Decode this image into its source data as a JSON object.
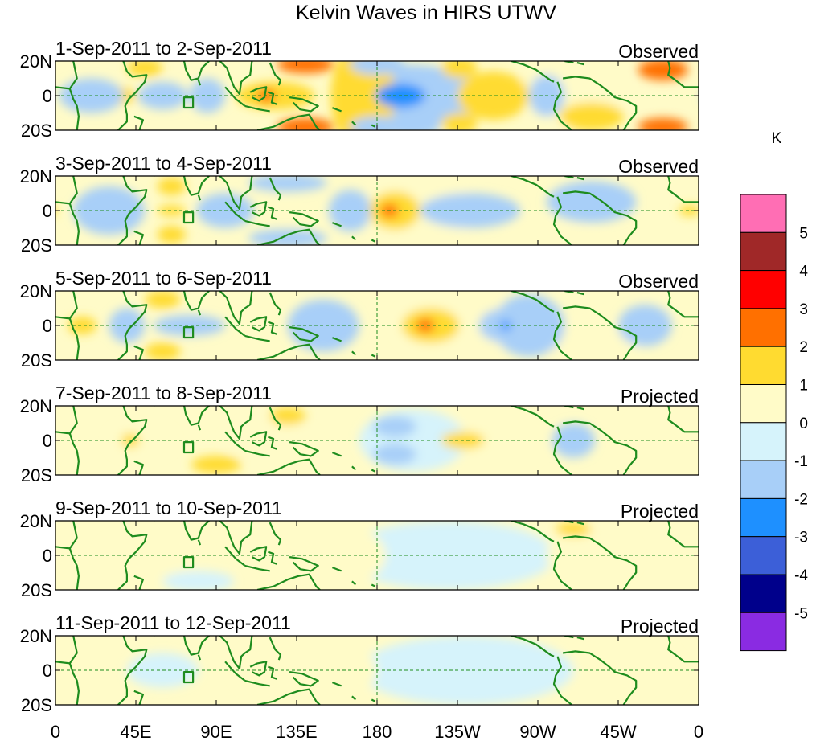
{
  "chart_data": {
    "type": "heatmap",
    "title": "Kelvin Waves in HIRS UTWV",
    "units": "K",
    "x_ticks": [
      "0",
      "45E",
      "90E",
      "135E",
      "180",
      "135W",
      "90W",
      "45W",
      "0"
    ],
    "y_ticks": [
      "20N",
      "0",
      "20S"
    ],
    "lon_range": [
      0,
      360
    ],
    "lat_range": [
      -20,
      20
    ],
    "colorbar": {
      "labels": [
        "5",
        "4",
        "3",
        "2",
        "1",
        "0",
        "-1",
        "-2",
        "-3",
        "-4",
        "-5"
      ],
      "levels": [
        -5,
        -4,
        -3,
        -2,
        -1,
        0,
        1,
        2,
        3,
        4,
        5
      ],
      "colors": [
        "#8a2be2",
        "#00008b",
        "#3c5fd8",
        "#1e90ff",
        "#a8cff8",
        "#d6f3fb",
        "#fffbc8",
        "#ffdb30",
        "#ff7000",
        "#ff0000",
        "#a02828",
        "#ff6eb4"
      ]
    },
    "panels": [
      {
        "period": "1-Sep-2011 to 2-Sep-2011",
        "status": "Observed",
        "anomalies": [
          {
            "lon": 193,
            "lat": 0,
            "value": -2.6,
            "rlon": 14,
            "rlat": 7
          },
          {
            "lon": 197,
            "lat": 0,
            "value": -1.2,
            "rlon": 42,
            "rlat": 18
          },
          {
            "lon": 172,
            "lat": 0,
            "value": 1.5,
            "rlon": 18,
            "rlat": 30
          },
          {
            "lon": 245,
            "lat": 0,
            "value": 1.4,
            "rlon": 20,
            "rlat": 14
          },
          {
            "lon": 290,
            "lat": 3,
            "value": 0.6,
            "rlon": 30,
            "rlat": 22
          },
          {
            "lon": 140,
            "lat": 18,
            "value": 2.2,
            "rlon": 16,
            "rlat": 5
          },
          {
            "lon": 140,
            "lat": -18,
            "value": 2.2,
            "rlon": 16,
            "rlat": 5
          },
          {
            "lon": 180,
            "lat": 18,
            "value": -1.5,
            "rlon": 15,
            "rlat": 6
          },
          {
            "lon": 180,
            "lat": -18,
            "value": -1.5,
            "rlon": 15,
            "rlat": 6
          },
          {
            "lon": 200,
            "lat": -18,
            "value": -1.5,
            "rlon": 15,
            "rlat": 6
          },
          {
            "lon": 123,
            "lat": 0,
            "value": 1.5,
            "rlon": 22,
            "rlat": 8
          },
          {
            "lon": 118,
            "lat": 0,
            "value": 2.6,
            "rlon": 5,
            "rlat": 4
          },
          {
            "lon": 226,
            "lat": 16,
            "value": 1.3,
            "rlon": 10,
            "rlat": 6
          },
          {
            "lon": 226,
            "lat": -16,
            "value": 1.3,
            "rlon": 10,
            "rlat": 6
          },
          {
            "lon": 340,
            "lat": 15,
            "value": 2.4,
            "rlon": 14,
            "rlat": 6
          },
          {
            "lon": 340,
            "lat": -18,
            "value": 2.4,
            "rlon": 14,
            "rlat": 5
          },
          {
            "lon": 300,
            "lat": -12,
            "value": 1.2,
            "rlon": 18,
            "rlat": 8
          },
          {
            "lon": 50,
            "lat": 16,
            "value": 1.2,
            "rlon": 10,
            "rlat": 5
          },
          {
            "lon": 35,
            "lat": 0,
            "value": 1.2,
            "rlon": 10,
            "rlat": 5
          },
          {
            "lon": 60,
            "lat": 0,
            "value": -1.1,
            "rlon": 14,
            "rlat": 8
          },
          {
            "lon": 85,
            "lat": 0,
            "value": -1.1,
            "rlon": 10,
            "rlat": 10
          },
          {
            "lon": 20,
            "lat": 0,
            "value": -1.2,
            "rlon": 18,
            "rlat": 10
          },
          {
            "lon": 275,
            "lat": 0,
            "value": -1.1,
            "rlon": 10,
            "rlat": 12
          }
        ]
      },
      {
        "period": "3-Sep-2011 to 4-Sep-2011",
        "status": "Observed",
        "anomalies": [
          {
            "lon": 187,
            "lat": 0,
            "value": 2.7,
            "rlon": 5,
            "rlat": 4
          },
          {
            "lon": 190,
            "lat": 0,
            "value": 1.4,
            "rlon": 14,
            "rlat": 11
          },
          {
            "lon": 205,
            "lat": 0,
            "value": 0.6,
            "rlon": 32,
            "rlat": 20
          },
          {
            "lon": 232,
            "lat": 0,
            "value": -1.2,
            "rlon": 28,
            "rlat": 10
          },
          {
            "lon": 65,
            "lat": 14,
            "value": 1.4,
            "rlon": 8,
            "rlat": 5
          },
          {
            "lon": 65,
            "lat": -14,
            "value": 1.4,
            "rlon": 8,
            "rlat": 5
          },
          {
            "lon": 65,
            "lat": 0,
            "value": 1.2,
            "rlon": 8,
            "rlat": 3
          },
          {
            "lon": 30,
            "lat": 0,
            "value": -1.2,
            "rlon": 20,
            "rlat": 14
          },
          {
            "lon": 95,
            "lat": 0,
            "value": -1.1,
            "rlon": 16,
            "rlat": 10
          },
          {
            "lon": 130,
            "lat": 16,
            "value": -1.1,
            "rlon": 22,
            "rlat": 5
          },
          {
            "lon": 130,
            "lat": -16,
            "value": -1.1,
            "rlon": 22,
            "rlat": 5
          },
          {
            "lon": 300,
            "lat": 5,
            "value": -1.1,
            "rlon": 25,
            "rlat": 12
          },
          {
            "lon": 355,
            "lat": 0,
            "value": 1.2,
            "rlon": 6,
            "rlat": 3
          },
          {
            "lon": 165,
            "lat": 0,
            "value": -1.1,
            "rlon": 12,
            "rlat": 12
          },
          {
            "lon": 280,
            "lat": -15,
            "value": 0.6,
            "rlon": 25,
            "rlat": 6
          }
        ]
      },
      {
        "period": "5-Sep-2011 to 6-Sep-2011",
        "status": "Observed",
        "anomalies": [
          {
            "lon": 207,
            "lat": 0,
            "value": 2.7,
            "rlon": 5,
            "rlat": 4
          },
          {
            "lon": 210,
            "lat": 0,
            "value": 1.4,
            "rlon": 16,
            "rlat": 10
          },
          {
            "lon": 225,
            "lat": 0,
            "value": 0.6,
            "rlon": 34,
            "rlat": 20
          },
          {
            "lon": 252,
            "lat": 0,
            "value": -2.5,
            "rlon": 3,
            "rlat": 3
          },
          {
            "lon": 252,
            "lat": 0,
            "value": -1.2,
            "rlon": 15,
            "rlat": 10
          },
          {
            "lon": 265,
            "lat": 0,
            "value": -1.1,
            "rlon": 20,
            "rlat": 18
          },
          {
            "lon": 15,
            "lat": 0,
            "value": 1.4,
            "rlon": 8,
            "rlat": 5
          },
          {
            "lon": 60,
            "lat": 15,
            "value": 1.2,
            "rlon": 10,
            "rlat": 5
          },
          {
            "lon": 60,
            "lat": -15,
            "value": 1.2,
            "rlon": 10,
            "rlat": 5
          },
          {
            "lon": 75,
            "lat": 0,
            "value": -1.2,
            "rlon": 20,
            "rlat": 6
          },
          {
            "lon": 150,
            "lat": 0,
            "value": -1.1,
            "rlon": 20,
            "rlat": 15
          },
          {
            "lon": 330,
            "lat": 0,
            "value": -1.1,
            "rlon": 15,
            "rlat": 12
          },
          {
            "lon": 300,
            "lat": -10,
            "value": 0.6,
            "rlon": 30,
            "rlat": 10
          },
          {
            "lon": 40,
            "lat": 0,
            "value": -1.1,
            "rlon": 10,
            "rlat": 10
          }
        ]
      },
      {
        "period": "7-Sep-2011 to 8-Sep-2011",
        "status": "Projected",
        "anomalies": [
          {
            "lon": 228,
            "lat": 0,
            "value": 1.3,
            "rlon": 12,
            "rlat": 5
          },
          {
            "lon": 245,
            "lat": 0,
            "value": 0.6,
            "rlon": 30,
            "rlat": 16
          },
          {
            "lon": 290,
            "lat": 0,
            "value": -1.2,
            "rlon": 12,
            "rlat": 10
          },
          {
            "lon": 190,
            "lat": 8,
            "value": -1.1,
            "rlon": 12,
            "rlat": 6
          },
          {
            "lon": 190,
            "lat": -8,
            "value": -1.1,
            "rlon": 12,
            "rlat": 6
          },
          {
            "lon": 200,
            "lat": 0,
            "value": -0.6,
            "rlon": 30,
            "rlat": 18
          },
          {
            "lon": 42,
            "lat": 0,
            "value": 1.3,
            "rlon": 5,
            "rlat": 4
          },
          {
            "lon": 48,
            "lat": 0,
            "value": 0.6,
            "rlon": 18,
            "rlat": 10
          },
          {
            "lon": 90,
            "lat": -14,
            "value": 1.3,
            "rlon": 14,
            "rlat": 5
          },
          {
            "lon": 120,
            "lat": 0,
            "value": 0.6,
            "rlon": 25,
            "rlat": 12
          },
          {
            "lon": 130,
            "lat": 14,
            "value": 1.2,
            "rlon": 10,
            "rlat": 5
          },
          {
            "lon": 340,
            "lat": 0,
            "value": 0.6,
            "rlon": 20,
            "rlat": 20
          }
        ]
      },
      {
        "period": "9-Sep-2011 to 10-Sep-2011",
        "status": "Projected",
        "anomalies": [
          {
            "lon": 220,
            "lat": 0,
            "value": -0.6,
            "rlon": 60,
            "rlat": 20
          },
          {
            "lon": 150,
            "lat": 0,
            "value": 0.6,
            "rlon": 35,
            "rlat": 20
          },
          {
            "lon": 290,
            "lat": 15,
            "value": 1.2,
            "rlon": 10,
            "rlat": 4
          },
          {
            "lon": 300,
            "lat": 0,
            "value": 0.6,
            "rlon": 25,
            "rlat": 18
          },
          {
            "lon": 55,
            "lat": 0,
            "value": 0.6,
            "rlon": 30,
            "rlat": 15
          },
          {
            "lon": 80,
            "lat": -15,
            "value": -0.6,
            "rlon": 20,
            "rlat": 6
          }
        ]
      },
      {
        "period": "11-Sep-2011 to 12-Sep-2011",
        "status": "Projected",
        "anomalies": [
          {
            "lon": 230,
            "lat": 0,
            "value": -0.6,
            "rlon": 60,
            "rlat": 20
          },
          {
            "lon": 140,
            "lat": 0,
            "value": 0.6,
            "rlon": 40,
            "rlat": 20
          },
          {
            "lon": 320,
            "lat": 0,
            "value": 0.6,
            "rlon": 30,
            "rlat": 20
          },
          {
            "lon": 60,
            "lat": 0,
            "value": -0.6,
            "rlon": 20,
            "rlat": 10
          }
        ]
      }
    ]
  }
}
